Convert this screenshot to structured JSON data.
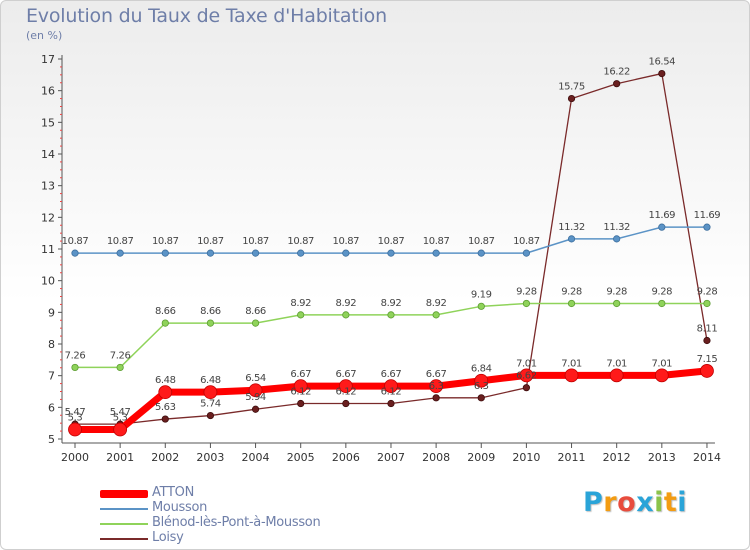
{
  "chart_data": {
    "type": "line",
    "title": "Evolution du Taux de Taxe d'Habitation",
    "subtitle": "(en %)",
    "categories": [
      "2000",
      "2001",
      "2002",
      "2003",
      "2004",
      "2005",
      "2006",
      "2007",
      "2008",
      "2009",
      "2010",
      "2011",
      "2012",
      "2013",
      "2014"
    ],
    "ylim": [
      5,
      17
    ],
    "yticks": [
      5,
      6,
      7,
      8,
      9,
      10,
      11,
      12,
      13,
      14,
      15,
      16,
      17
    ],
    "grid": false,
    "legend_position": "bottom-left",
    "series": [
      {
        "name": "ATTON",
        "color": "#ff0000",
        "values": [
          5.3,
          5.3,
          6.48,
          6.48,
          6.54,
          6.67,
          6.67,
          6.67,
          6.67,
          6.84,
          7.01,
          7.01,
          7.01,
          7.01,
          7.15
        ],
        "labels": [
          "5.3",
          "5.3",
          "6.48",
          "6.48",
          "6.54",
          "6.67",
          "6.67",
          "6.67",
          "6.67",
          "6.84",
          "7.01",
          "7.01",
          "7.01",
          "7.01",
          "7.15"
        ]
      },
      {
        "name": "Mousson",
        "color": "#5b93c6",
        "values": [
          10.87,
          10.87,
          10.87,
          10.87,
          10.87,
          10.87,
          10.87,
          10.87,
          10.87,
          10.87,
          10.87,
          11.32,
          11.32,
          11.69,
          11.69
        ],
        "labels": [
          "10.87",
          "10.87",
          "10.87",
          "10.87",
          "10.87",
          "10.87",
          "10.87",
          "10.87",
          "10.87",
          "10.87",
          "10.87",
          "11.32",
          "11.32",
          "11.69",
          "11.69"
        ]
      },
      {
        "name": "Blénod-lès-Pont-à-Mousson",
        "color": "#8fd35a",
        "values": [
          7.26,
          7.26,
          8.66,
          8.66,
          8.66,
          8.92,
          8.92,
          8.92,
          8.92,
          9.19,
          9.28,
          9.28,
          9.28,
          9.28,
          9.28
        ],
        "labels": [
          "7.26",
          "7.26",
          "8.66",
          "8.66",
          "8.66",
          "8.92",
          "8.92",
          "8.92",
          "8.92",
          "9.19",
          "9.28",
          "9.28",
          "9.28",
          "9.28",
          "9.28"
        ]
      },
      {
        "name": "Loisy",
        "color": "#7a2a2a",
        "values": [
          5.47,
          5.47,
          5.63,
          5.74,
          5.94,
          6.12,
          6.12,
          6.12,
          6.3,
          6.3,
          6.62,
          15.75,
          16.22,
          16.54,
          8.11
        ],
        "labels": [
          "5.47",
          "5.47",
          "5.63",
          "5.74",
          "5.94",
          "6.12",
          "6.12",
          "6.12",
          "6.3",
          "6.3",
          "6.62",
          "15.75",
          "16.22",
          "16.54",
          "8.11"
        ]
      }
    ]
  },
  "logo": {
    "text": "Proxiti",
    "letters": [
      "P",
      "r",
      "o",
      "x",
      "i",
      "t",
      "i"
    ],
    "colors": [
      "#2aa4d8",
      "#f39c12",
      "#e84c3d",
      "#2aa4d8",
      "#8bc34a",
      "#f39c12",
      "#2aa4d8"
    ]
  }
}
